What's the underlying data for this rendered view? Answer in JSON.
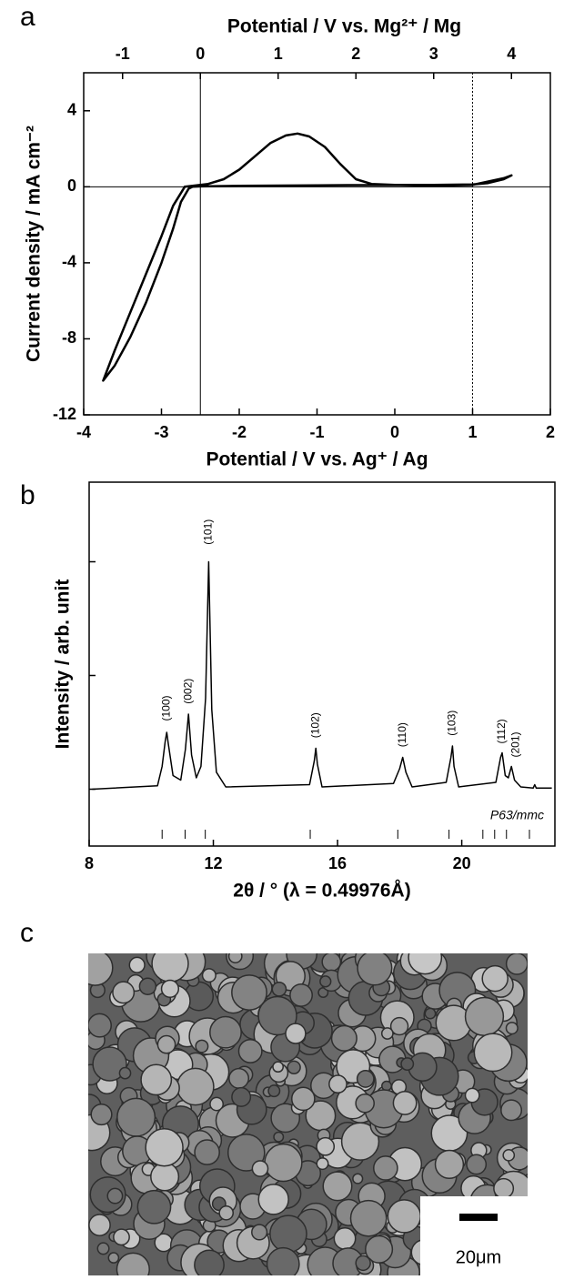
{
  "panel_labels": [
    "a",
    "b",
    "c"
  ],
  "chart_data": [
    {
      "type": "line",
      "xlabel": "Potential / V vs. Ag⁺ / Ag",
      "x2label": "Potential / V vs. Mg²⁺ / Mg",
      "ylabel": "Current density / mA cm⁻²",
      "xlim": [
        -4,
        2
      ],
      "xticks": [
        -4,
        -3,
        -2,
        -1,
        0,
        1,
        2
      ],
      "x2lim": [
        -1.5,
        4.5
      ],
      "x2ticks": [
        -1,
        0,
        1,
        2,
        3,
        4
      ],
      "ylim": [
        -12,
        6
      ],
      "yticks": [
        -12,
        -8,
        -4,
        0,
        4
      ],
      "reference_lines": [
        {
          "axis": "x",
          "value": -2.5,
          "style": "solid"
        },
        {
          "axis": "x",
          "value": 1,
          "style": "dotted"
        },
        {
          "axis": "y",
          "value": 0,
          "style": "solid"
        }
      ],
      "series": [
        {
          "color": "#000000",
          "x": [
            -2.6,
            -2.5,
            -2,
            -1,
            0,
            0.5,
            1,
            1.2,
            1.4,
            1.5,
            1.4,
            1,
            0.5,
            0,
            -0.3,
            -0.5,
            -0.7,
            -0.9,
            -1.1,
            -1.25,
            -1.4,
            -1.6,
            -1.8,
            -2,
            -2.2,
            -2.4,
            -2.6,
            -2.7,
            -2.85,
            -3,
            -3.2,
            -3.4,
            -3.6,
            -3.75,
            -3.6,
            -3.4,
            -3.2,
            -3,
            -2.85,
            -2.75,
            -2.65,
            -2.6
          ],
          "values": [
            0,
            0.02,
            0.05,
            0.08,
            0.1,
            0.1,
            0.12,
            0.2,
            0.4,
            0.6,
            0.45,
            0.1,
            0.05,
            0.1,
            0.15,
            0.4,
            1.2,
            2.1,
            2.65,
            2.8,
            2.7,
            2.3,
            1.6,
            0.9,
            0.4,
            0.15,
            0.05,
            0,
            -1,
            -2.6,
            -4.6,
            -6.6,
            -8.6,
            -10.2,
            -9.4,
            -7.9,
            -6.1,
            -4,
            -2.2,
            -0.8,
            -0.1,
            0
          ]
        }
      ]
    },
    {
      "type": "line",
      "xlabel": "2θ / ° (λ = 0.49976Å)",
      "ylabel": "Intensity / arb. unit",
      "xlim": [
        8,
        23
      ],
      "xticks": [
        8,
        12,
        16,
        20
      ],
      "ylim": [
        -0.5,
        2.7
      ],
      "yticks": [
        0,
        1,
        2
      ],
      "ytick_labels": false,
      "series": [
        {
          "color": "#000000",
          "x": [
            8.1,
            10.2,
            10.35,
            10.45,
            10.5,
            10.55,
            10.7,
            10.95,
            11.1,
            11.2,
            11.3,
            11.45,
            11.6,
            11.75,
            11.85,
            11.95,
            12.1,
            12.4,
            15.1,
            15.25,
            15.3,
            15.35,
            15.5,
            17.8,
            18.0,
            18.1,
            18.2,
            18.4,
            19.5,
            19.65,
            19.7,
            19.75,
            19.9,
            21.1,
            21.25,
            21.3,
            21.4,
            21.5,
            21.6,
            21.7,
            21.9,
            22.3,
            22.35,
            22.4,
            22.9
          ],
          "values": [
            0,
            0.03,
            0.2,
            0.42,
            0.5,
            0.4,
            0.12,
            0.08,
            0.35,
            0.66,
            0.3,
            0.1,
            0.2,
            0.8,
            2.0,
            0.7,
            0.15,
            0.02,
            0.04,
            0.25,
            0.36,
            0.22,
            0.02,
            0.05,
            0.18,
            0.28,
            0.15,
            0.02,
            0.06,
            0.28,
            0.38,
            0.2,
            0.02,
            0.06,
            0.28,
            0.32,
            0.12,
            0.1,
            0.2,
            0.08,
            0.02,
            0.01,
            0.04,
            0.01,
            0.01
          ]
        }
      ],
      "annotations": [
        {
          "text": "(100)",
          "x": 10.5,
          "y": 0.6
        },
        {
          "text": "(002)",
          "x": 11.2,
          "y": 0.75
        },
        {
          "text": "(101)",
          "x": 11.85,
          "y": 2.15
        },
        {
          "text": "(102)",
          "x": 15.3,
          "y": 0.45
        },
        {
          "text": "(110)",
          "x": 18.1,
          "y": 0.37
        },
        {
          "text": "(103)",
          "x": 19.7,
          "y": 0.47
        },
        {
          "text": "(112)",
          "x": 21.3,
          "y": 0.4
        },
        {
          "text": "(201)",
          "x": 21.75,
          "y": 0.28
        }
      ],
      "reflections": {
        "label": "P63/mmc",
        "positions": [
          10.35,
          11.09,
          11.74,
          15.12,
          17.94,
          19.59,
          20.68,
          21.06,
          21.44,
          22.18
        ]
      }
    }
  ],
  "image": {
    "scale_bar_label": "20μm"
  }
}
